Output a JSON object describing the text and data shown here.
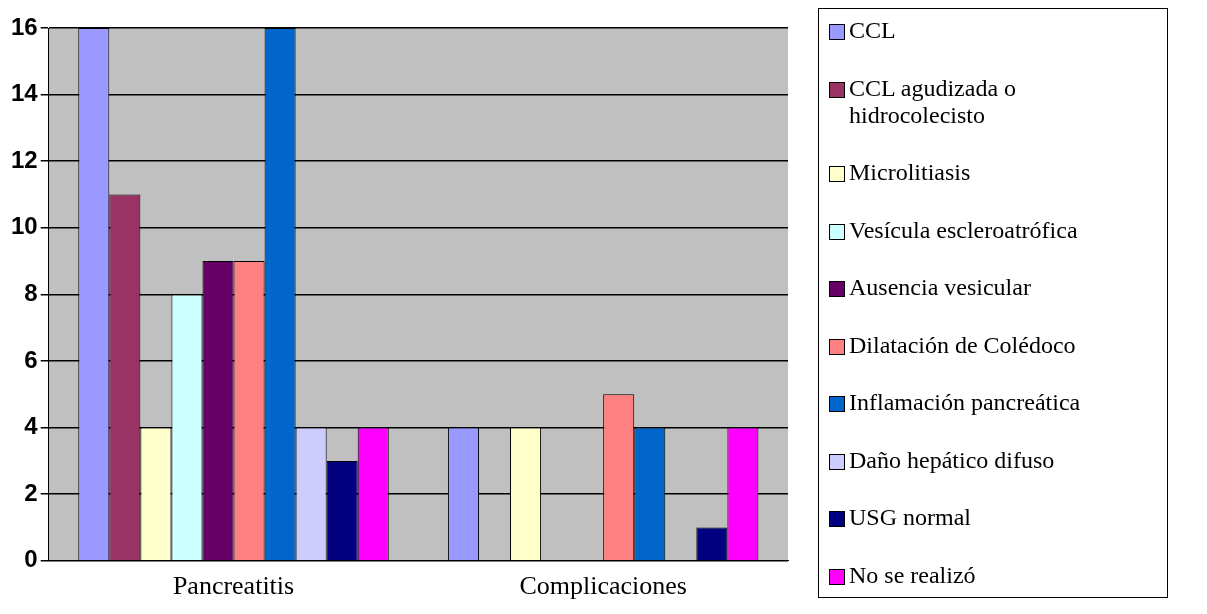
{
  "chart_data": {
    "type": "bar",
    "categories": [
      "Pancreatitis",
      "Complicaciones"
    ],
    "series": [
      {
        "name": "CCL",
        "color": "#9999ff",
        "values": [
          16,
          4
        ]
      },
      {
        "name": "CCL agudizada o hidrocolecisto",
        "color": "#993366",
        "values": [
          11,
          0
        ]
      },
      {
        "name": "Microlitiasis",
        "color": "#ffffcc",
        "values": [
          4,
          4
        ]
      },
      {
        "name": "Vesícula escleroatrófica",
        "color": "#ccffff",
        "values": [
          8,
          0
        ]
      },
      {
        "name": "Ausencia vesicular",
        "color": "#660066",
        "values": [
          9,
          0
        ]
      },
      {
        "name": "Dilatación de Colédoco",
        "color": "#ff8080",
        "values": [
          9,
          5
        ]
      },
      {
        "name": "Inflamación pancreática",
        "color": "#0066cc",
        "values": [
          16,
          4
        ]
      },
      {
        "name": "Daño hepático difuso",
        "color": "#ccccff",
        "values": [
          4,
          0
        ]
      },
      {
        "name": "USG normal",
        "color": "#000080",
        "values": [
          3,
          1
        ]
      },
      {
        "name": "No se realizó",
        "color": "#ff00ff",
        "values": [
          4,
          4
        ]
      }
    ],
    "ylim": [
      0,
      16
    ],
    "yticks": [
      0,
      2,
      4,
      6,
      8,
      10,
      12,
      14,
      16
    ],
    "grid": "y",
    "legend": "right"
  }
}
